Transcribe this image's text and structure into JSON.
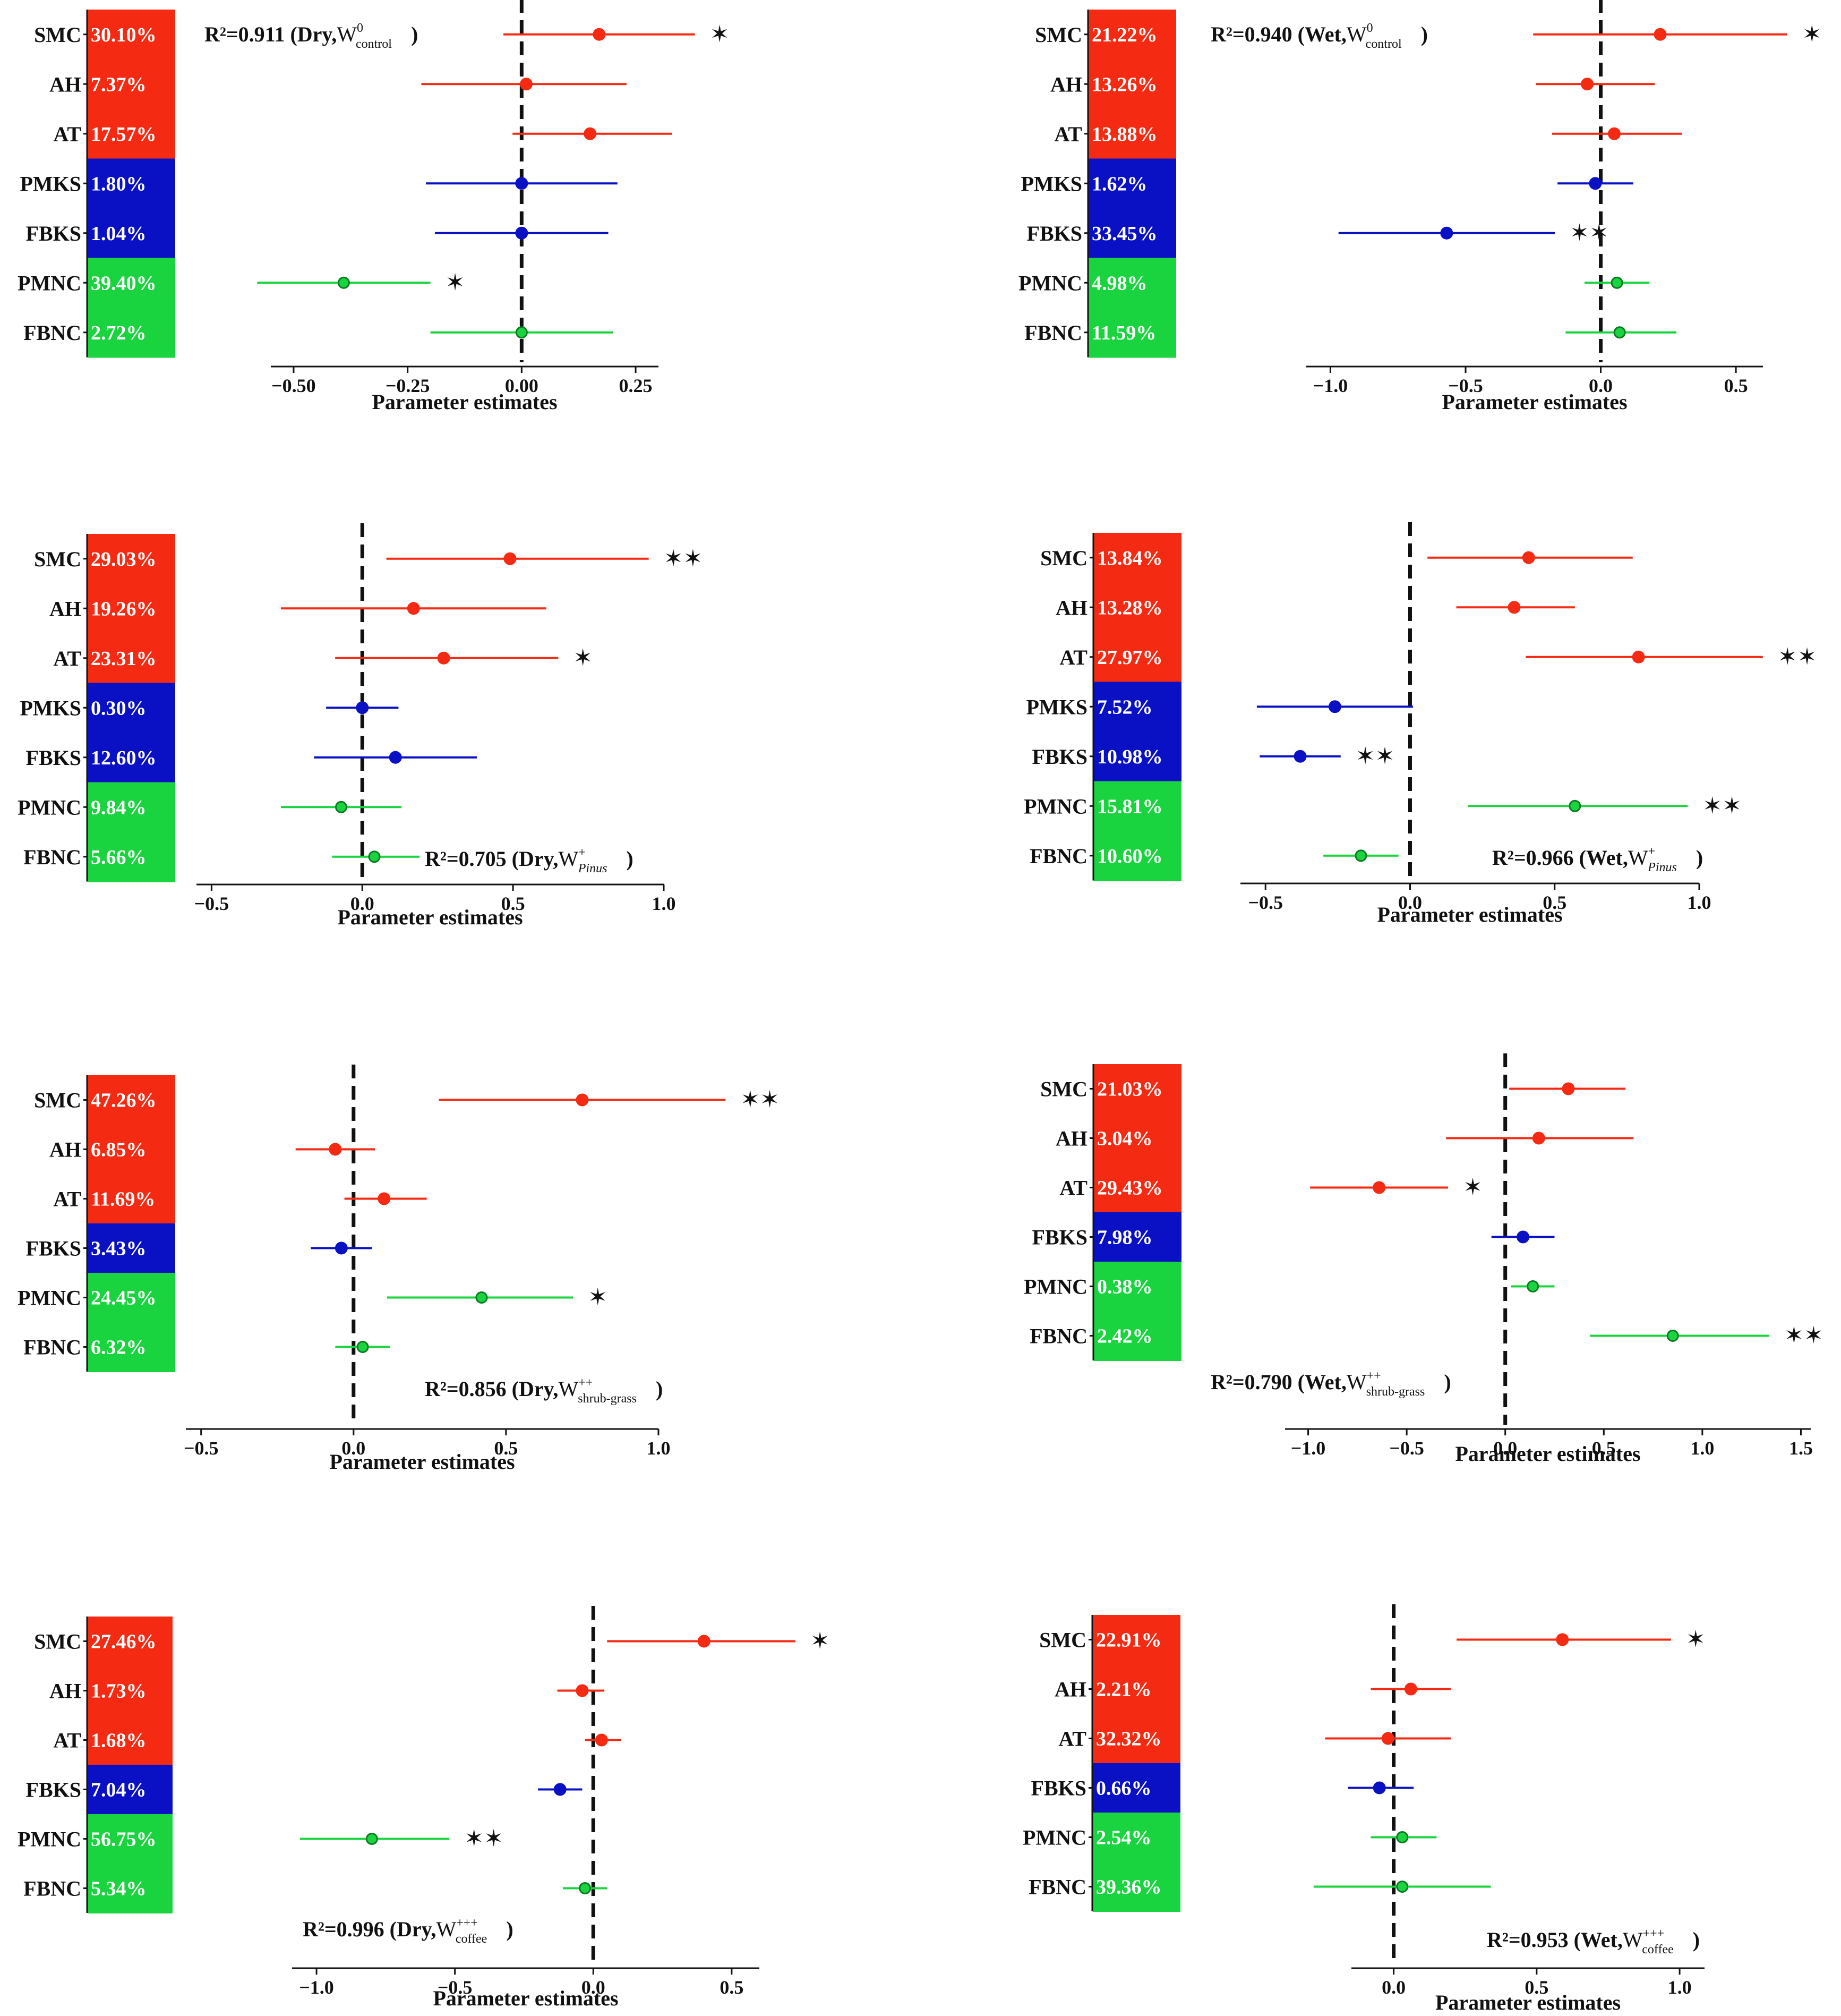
{
  "colors": {
    "climate": "#f52a12",
    "karst": "#0a10c4",
    "network": "#19d43e",
    "zero_line": "#111111",
    "axis": "#111111"
  },
  "chart_data": [
    {
      "type": "forest",
      "r2_label": "R²=0.911 (Dry,",
      "w_base": "W",
      "w_sup": "0",
      "w_sub": "control",
      "r2_close": ")",
      "xlabel": "Parameter estimates",
      "xlim": [
        -0.55,
        0.3
      ],
      "xticks": [
        -0.5,
        -0.25,
        0,
        0.25
      ],
      "xtick_labels": [
        "−0.50",
        "−0.25",
        "0.00",
        "0.25"
      ],
      "rows": [
        {
          "var": "SMC",
          "pct": "30.10%",
          "group": "climate",
          "est": 0.17,
          "lo": -0.04,
          "hi": 0.38,
          "sig": "✶"
        },
        {
          "var": "AH",
          "pct": "7.37%",
          "group": "climate",
          "est": 0.01,
          "lo": -0.22,
          "hi": 0.23,
          "sig": ""
        },
        {
          "var": "AT",
          "pct": "17.57%",
          "group": "climate",
          "est": 0.15,
          "lo": -0.02,
          "hi": 0.33,
          "sig": ""
        },
        {
          "var": "PMKS",
          "pct": "1.80%",
          "group": "karst",
          "est": 0.0,
          "lo": -0.21,
          "hi": 0.21,
          "sig": ""
        },
        {
          "var": "FBKS",
          "pct": "1.04%",
          "group": "karst",
          "est": 0.0,
          "lo": -0.19,
          "hi": 0.19,
          "sig": ""
        },
        {
          "var": "PMNC",
          "pct": "39.40%",
          "group": "network",
          "est": -0.39,
          "lo": -0.58,
          "hi": -0.2,
          "sig": "✶"
        },
        {
          "var": "FBNC",
          "pct": "2.72%",
          "group": "network",
          "est": 0.0,
          "lo": -0.2,
          "hi": 0.2,
          "sig": ""
        }
      ]
    },
    {
      "type": "forest",
      "r2_label": "R²=0.940 (Wet,",
      "w_base": "W",
      "w_sup": "0",
      "w_sub": "control",
      "r2_close": ")",
      "xlabel": "Parameter estimates",
      "xlim": [
        -1.05,
        0.6
      ],
      "xticks": [
        -1.0,
        -0.5,
        0,
        0.5
      ],
      "xtick_labels": [
        "−1.0",
        "−0.5",
        "0.0",
        "0.5"
      ],
      "rows": [
        {
          "var": "SMC",
          "pct": "21.22%",
          "group": "climate",
          "est": 0.22,
          "lo": -0.25,
          "hi": 0.69,
          "sig": "✶"
        },
        {
          "var": "AH",
          "pct": "13.26%",
          "group": "climate",
          "est": -0.05,
          "lo": -0.24,
          "hi": 0.2,
          "sig": ""
        },
        {
          "var": "AT",
          "pct": "13.88%",
          "group": "climate",
          "est": 0.05,
          "lo": -0.18,
          "hi": 0.3,
          "sig": ""
        },
        {
          "var": "PMKS",
          "pct": "1.62%",
          "group": "karst",
          "est": -0.02,
          "lo": -0.16,
          "hi": 0.12,
          "sig": ""
        },
        {
          "var": "FBKS",
          "pct": "33.45%",
          "group": "karst",
          "est": -0.57,
          "lo": -0.97,
          "hi": -0.17,
          "sig": "✶✶"
        },
        {
          "var": "PMNC",
          "pct": "4.98%",
          "group": "network",
          "est": 0.06,
          "lo": -0.06,
          "hi": 0.18,
          "sig": ""
        },
        {
          "var": "FBNC",
          "pct": "11.59%",
          "group": "network",
          "est": 0.07,
          "lo": -0.13,
          "hi": 0.28,
          "sig": ""
        }
      ]
    },
    {
      "type": "forest",
      "r2_label": "R²=0.705 (Dry,",
      "w_base": "W",
      "w_sup": "+",
      "w_sub": "Pinus",
      "r2_close": ")",
      "xlabel": "Parameter estimates",
      "xlim": [
        -0.55,
        1.0
      ],
      "xticks": [
        -0.5,
        0,
        0.5,
        1.0
      ],
      "xtick_labels": [
        "−0.5",
        "0.0",
        "0.5",
        "1.0"
      ],
      "rows": [
        {
          "var": "SMC",
          "pct": "29.03%",
          "group": "climate",
          "est": 0.49,
          "lo": 0.08,
          "hi": 0.95,
          "sig": "✶✶"
        },
        {
          "var": "AH",
          "pct": "19.26%",
          "group": "climate",
          "est": 0.17,
          "lo": -0.27,
          "hi": 0.61,
          "sig": ""
        },
        {
          "var": "AT",
          "pct": "23.31%",
          "group": "climate",
          "est": 0.27,
          "lo": -0.09,
          "hi": 0.65,
          "sig": "✶"
        },
        {
          "var": "PMKS",
          "pct": "0.30%",
          "group": "karst",
          "est": 0.0,
          "lo": -0.12,
          "hi": 0.12,
          "sig": ""
        },
        {
          "var": "FBKS",
          "pct": "12.60%",
          "group": "karst",
          "est": 0.11,
          "lo": -0.16,
          "hi": 0.38,
          "sig": ""
        },
        {
          "var": "PMNC",
          "pct": "9.84%",
          "group": "network",
          "est": -0.07,
          "lo": -0.27,
          "hi": 0.13,
          "sig": ""
        },
        {
          "var": "FBNC",
          "pct": "5.66%",
          "group": "network",
          "est": 0.04,
          "lo": -0.1,
          "hi": 0.19,
          "sig": ""
        }
      ]
    },
    {
      "type": "forest",
      "r2_label": "R²=0.966 (Wet,",
      "w_base": "W",
      "w_sup": "+",
      "w_sub": "Pinus",
      "r2_close": ")",
      "xlabel": "Parameter estimates",
      "xlim": [
        -0.55,
        1.0
      ],
      "xticks": [
        -0.5,
        0,
        0.5,
        1.0
      ],
      "xtick_labels": [
        "−0.5",
        "0.0",
        "0.5",
        "1.0"
      ],
      "rows": [
        {
          "var": "SMC",
          "pct": "13.84%",
          "group": "climate",
          "est": 0.41,
          "lo": 0.06,
          "hi": 0.77,
          "sig": ""
        },
        {
          "var": "AH",
          "pct": "13.28%",
          "group": "climate",
          "est": 0.36,
          "lo": 0.16,
          "hi": 0.57,
          "sig": ""
        },
        {
          "var": "AT",
          "pct": "27.97%",
          "group": "climate",
          "est": 0.79,
          "lo": 0.4,
          "hi": 1.22,
          "sig": "✶✶"
        },
        {
          "var": "PMKS",
          "pct": "7.52%",
          "group": "karst",
          "est": -0.26,
          "lo": -0.53,
          "hi": 0.01,
          "sig": ""
        },
        {
          "var": "FBKS",
          "pct": "10.98%",
          "group": "karst",
          "est": -0.38,
          "lo": -0.52,
          "hi": -0.24,
          "sig": "✶✶"
        },
        {
          "var": "PMNC",
          "pct": "15.81%",
          "group": "network",
          "est": 0.57,
          "lo": 0.2,
          "hi": 0.96,
          "sig": "✶✶"
        },
        {
          "var": "FBNC",
          "pct": "10.60%",
          "group": "network",
          "est": -0.17,
          "lo": -0.3,
          "hi": -0.04,
          "sig": ""
        }
      ]
    },
    {
      "type": "forest",
      "r2_label": "R²=0.856 (Dry,",
      "w_base": "W",
      "w_sup": "++",
      "w_sub": "shrub-grass",
      "r2_close": ")",
      "xlabel": "Parameter estimates",
      "xlim": [
        -0.55,
        1.0
      ],
      "xticks": [
        -0.5,
        0,
        0.5,
        1.0
      ],
      "xtick_labels": [
        "−0.5",
        "0.0",
        "0.5",
        "1.0"
      ],
      "rows": [
        {
          "var": "SMC",
          "pct": "47.26%",
          "group": "climate",
          "est": 0.75,
          "lo": 0.28,
          "hi": 1.22,
          "sig": "✶✶"
        },
        {
          "var": "AH",
          "pct": "6.85%",
          "group": "climate",
          "est": -0.06,
          "lo": -0.19,
          "hi": 0.07,
          "sig": ""
        },
        {
          "var": "AT",
          "pct": "11.69%",
          "group": "climate",
          "est": 0.1,
          "lo": -0.03,
          "hi": 0.24,
          "sig": ""
        },
        {
          "var": "FBKS",
          "pct": "3.43%",
          "group": "karst",
          "est": -0.04,
          "lo": -0.14,
          "hi": 0.06,
          "sig": ""
        },
        {
          "var": "PMNC",
          "pct": "24.45%",
          "group": "network",
          "est": 0.42,
          "lo": 0.11,
          "hi": 0.72,
          "sig": "✶"
        },
        {
          "var": "FBNC",
          "pct": "6.32%",
          "group": "network",
          "est": 0.03,
          "lo": -0.06,
          "hi": 0.12,
          "sig": ""
        }
      ]
    },
    {
      "type": "forest",
      "r2_label": "R²=0.790 (Wet,",
      "w_base": "W",
      "w_sup": "++",
      "w_sub": "shrub-grass",
      "r2_close": ")",
      "xlabel": "Parameter estimates",
      "xlim": [
        -1.05,
        1.55
      ],
      "xticks": [
        -1.0,
        -0.5,
        0,
        0.5,
        1.0,
        1.5
      ],
      "xtick_labels": [
        "−1.0",
        "−0.5",
        "0.0",
        "0.5",
        "1.0",
        "1.5"
      ],
      "rows": [
        {
          "var": "SMC",
          "pct": "21.03%",
          "group": "climate",
          "est": 0.32,
          "lo": 0.02,
          "hi": 0.61,
          "sig": ""
        },
        {
          "var": "AH",
          "pct": "3.04%",
          "group": "climate",
          "est": 0.17,
          "lo": -0.3,
          "hi": 0.65,
          "sig": ""
        },
        {
          "var": "AT",
          "pct": "29.43%",
          "group": "climate",
          "est": -0.64,
          "lo": -0.99,
          "hi": -0.29,
          "sig": "✶"
        },
        {
          "var": "FBKS",
          "pct": "7.98%",
          "group": "karst",
          "est": 0.09,
          "lo": -0.07,
          "hi": 0.25,
          "sig": ""
        },
        {
          "var": "PMNC",
          "pct": "0.38%",
          "group": "network",
          "est": 0.14,
          "lo": 0.03,
          "hi": 0.25,
          "sig": ""
        },
        {
          "var": "FBNC",
          "pct": "2.42%",
          "group": "network",
          "est": 0.85,
          "lo": 0.43,
          "hi": 1.34,
          "sig": "✶✶"
        }
      ]
    },
    {
      "type": "forest",
      "r2_label": "R²=0.996 (Dry,",
      "w_base": "W",
      "w_sup": "+++",
      "w_sub": "coffee",
      "r2_close": ")",
      "xlabel": "Parameter estimates",
      "xlim": [
        -1.05,
        0.6
      ],
      "xticks": [
        -1.0,
        -0.5,
        0,
        0.5
      ],
      "xtick_labels": [
        "−1.0",
        "−0.5",
        "0.0",
        "0.5"
      ],
      "rows": [
        {
          "var": "SMC",
          "pct": "27.46%",
          "group": "climate",
          "est": 0.4,
          "lo": 0.05,
          "hi": 0.73,
          "sig": "✶"
        },
        {
          "var": "AH",
          "pct": "1.73%",
          "group": "climate",
          "est": -0.04,
          "lo": -0.13,
          "hi": 0.04,
          "sig": ""
        },
        {
          "var": "AT",
          "pct": "1.68%",
          "group": "climate",
          "est": 0.03,
          "lo": -0.03,
          "hi": 0.1,
          "sig": ""
        },
        {
          "var": "FBKS",
          "pct": "7.04%",
          "group": "karst",
          "est": -0.12,
          "lo": -0.2,
          "hi": -0.04,
          "sig": ""
        },
        {
          "var": "PMNC",
          "pct": "56.75%",
          "group": "network",
          "est": -0.8,
          "lo": -1.06,
          "hi": -0.52,
          "sig": "✶✶"
        },
        {
          "var": "FBNC",
          "pct": "5.34%",
          "group": "network",
          "est": -0.03,
          "lo": -0.11,
          "hi": 0.05,
          "sig": ""
        }
      ]
    },
    {
      "type": "forest",
      "r2_label": "R²=0.953 (Wet,",
      "w_base": "W",
      "w_sup": "+++",
      "w_sub": "coffee",
      "r2_close": ")",
      "xlabel": "Parameter estimates",
      "xlim": [
        -0.12,
        1.05
      ],
      "xticks": [
        0,
        0.5,
        1.0
      ],
      "xtick_labels": [
        "0.0",
        "0.5",
        "1.0"
      ],
      "rows": [
        {
          "var": "SMC",
          "pct": "22.91%",
          "group": "climate",
          "est": 0.59,
          "lo": 0.22,
          "hi": 0.97,
          "sig": "✶"
        },
        {
          "var": "AH",
          "pct": "2.21%",
          "group": "climate",
          "est": 0.06,
          "lo": -0.08,
          "hi": 0.2,
          "sig": ""
        },
        {
          "var": "AT",
          "pct": "32.32%",
          "group": "climate",
          "est": -0.02,
          "lo": -0.24,
          "hi": 0.2,
          "sig": ""
        },
        {
          "var": "FBKS",
          "pct": "0.66%",
          "group": "karst",
          "est": -0.05,
          "lo": -0.16,
          "hi": 0.07,
          "sig": ""
        },
        {
          "var": "PMNC",
          "pct": "2.54%",
          "group": "network",
          "est": 0.03,
          "lo": -0.08,
          "hi": 0.15,
          "sig": ""
        },
        {
          "var": "FBNC",
          "pct": "39.36%",
          "group": "network",
          "est": 0.03,
          "lo": -0.28,
          "hi": 0.34,
          "sig": ""
        }
      ]
    }
  ]
}
